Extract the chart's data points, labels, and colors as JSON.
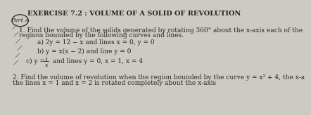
{
  "title": "EXERCISE 7.2 : VOLUME OF A SOLID OF REVOLUTION",
  "part_label": "Part A",
  "line1": "1. Find the volume of the solids generated by rotating 360° about the x-axis each of the",
  "line2": "regions bounded by the following curves and lines.",
  "item_a": "a) 2y = 12 − x and lines x = 0, y = 0",
  "item_b": "b) y = x(x − 2) and line y = 0",
  "item_c_pre": "c) y = ",
  "item_c_num": "1",
  "item_c_den": "x",
  "item_c_post": " and lines y = 0, x = 1, x = 4",
  "q2_line1": "2. Find the volume of revolution when the region bounded by the curve y = x² + 4, the x-a",
  "q2_line2": "the lines x = 1 and x = 2 is rotated completely about the x-axis",
  "bg_color": "#cdc9c3",
  "text_color": "#2a2520",
  "title_fontsize": 7.0,
  "body_fontsize": 6.5,
  "small_fontsize": 5.8
}
